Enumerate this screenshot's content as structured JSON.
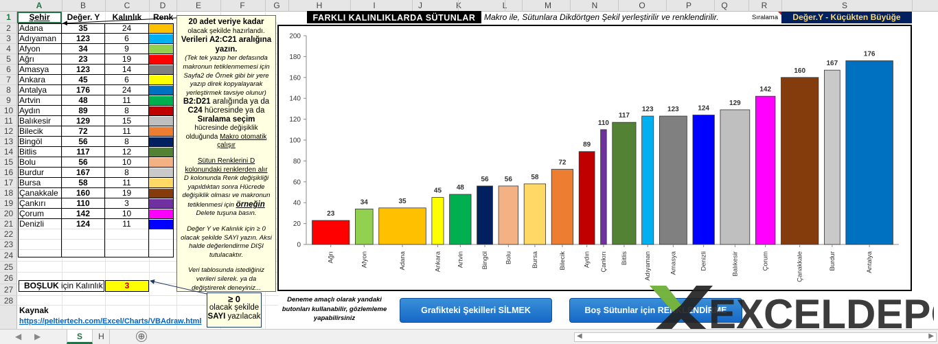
{
  "columns": [
    "A",
    "B",
    "C",
    "D",
    "E",
    "F",
    "G",
    "H",
    "I",
    "J",
    "K",
    "L",
    "M",
    "N",
    "O",
    "P",
    "Q",
    "R",
    "S"
  ],
  "rows": [
    "1",
    "2",
    "3",
    "4",
    "5",
    "6",
    "7",
    "8",
    "9",
    "10",
    "11",
    "12",
    "13",
    "14",
    "15",
    "16",
    "17",
    "18",
    "19",
    "20",
    "21",
    "22",
    "23",
    "24",
    "25",
    "26",
    "27",
    "28"
  ],
  "table": {
    "headers": [
      "Şehir",
      "Değer. Y",
      "Kalınlık",
      "Renk"
    ],
    "rows": [
      {
        "name": "Adana",
        "value": "35",
        "thickness": "24",
        "color": "#ffc000"
      },
      {
        "name": "Adıyaman",
        "value": "123",
        "thickness": "6",
        "color": "#00b0f0"
      },
      {
        "name": "Afyon",
        "value": "34",
        "thickness": "9",
        "color": "#92d050"
      },
      {
        "name": "Ağrı",
        "value": "23",
        "thickness": "19",
        "color": "#ff0000"
      },
      {
        "name": "Amasya",
        "value": "123",
        "thickness": "14",
        "color": "#808080"
      },
      {
        "name": "Ankara",
        "value": "45",
        "thickness": "6",
        "color": "#ffff00"
      },
      {
        "name": "Antalya",
        "value": "176",
        "thickness": "24",
        "color": "#0070c0"
      },
      {
        "name": "Artvin",
        "value": "48",
        "thickness": "11",
        "color": "#00b050"
      },
      {
        "name": "Aydın",
        "value": "89",
        "thickness": "8",
        "color": "#c00000"
      },
      {
        "name": "Balıkesir",
        "value": "129",
        "thickness": "15",
        "color": "#bfbfbf"
      },
      {
        "name": "Bilecik",
        "value": "72",
        "thickness": "11",
        "color": "#ed7d31"
      },
      {
        "name": "Bingöl",
        "value": "56",
        "thickness": "8",
        "color": "#002060"
      },
      {
        "name": "Bitlis",
        "value": "117",
        "thickness": "12",
        "color": "#548235"
      },
      {
        "name": "Bolu",
        "value": "56",
        "thickness": "10",
        "color": "#f4b183"
      },
      {
        "name": "Burdur",
        "value": "167",
        "thickness": "8",
        "color": "#c9c9c9"
      },
      {
        "name": "Bursa",
        "value": "58",
        "thickness": "11",
        "color": "#ffd966"
      },
      {
        "name": "Çanakkale",
        "value": "160",
        "thickness": "19",
        "color": "#843c0c"
      },
      {
        "name": "Çankırı",
        "value": "110",
        "thickness": "3",
        "color": "#7030a0"
      },
      {
        "name": "Çorum",
        "value": "142",
        "thickness": "10",
        "color": "#ff00ff"
      },
      {
        "name": "Denizli",
        "value": "124",
        "thickness": "11",
        "color": "#0000ff"
      }
    ]
  },
  "note": {
    "line1": "20 adet veriye kadar",
    "line2": "olacak şekilde hazırlandı.",
    "line3": "Verileri A2:C21 aralığına yazın.",
    "line4": "(Tek tek yazıp her defasında makronun tetiklenmemesi için Sayfa2 de Örnek gibi bir yere yazıp direk kopyalayarak yerleştirmek tavsiye olunur)",
    "line5a": "B2:D21",
    "line5b": " aralığında ya da",
    "line6a": "C24",
    "line6b": " hücresinde ya da",
    "line7": "Sıralama seçim",
    "line8": "hücresinde değişiklik olduğunda ",
    "line8u": "Makro otomatik çalışır",
    "line9": "Sütun Renklerini D kolonundaki renklerden alır",
    "line10": "D kolonunda Renk değişikliği yapıldıktan sonra Hücrede değişiklik olması ve makronun tetiklenmesi için ",
    "line10u": "örneğin",
    "line10b": " Delete  tuşuna basın.",
    "line11": "Değer Y  ve  Kalınlık  için  ≥ 0 olacak şekilde SAYI yazın. Aksi halde değerlendirme DIŞI tutulacaktır.",
    "line12": "Veri tablosunda istediğiniz verileri silerek. ya da değiştirerek deneyiniz..."
  },
  "bosluk": {
    "label_bold": "BOŞLUK",
    "label_rest": " için Kalınlık",
    "value": "3"
  },
  "callout": {
    "line1": "≥ 0",
    "line2": "olacak şekilde",
    "line3": "SAYI",
    "line4": " yazılacak"
  },
  "kaynak": {
    "label": "Kaynak",
    "link": "https://peltiertech.com/Excel/Charts/VBAdraw.html"
  },
  "deneme": "Deneme amaçlı olarak yandaki butonları kullanabilir, gözlemleme yapabilirsiniz",
  "header": {
    "title": "FARKLI  KALINLIKLARDA  SÜTUNLAR",
    "subtitle": "Makro ile, Sütunlara Dikdörtgen Şekil yerleştirilir ve renklendirilir.",
    "siralama_label": "Sıralama",
    "siralama_value": "Değer.Y - Küçükten Büyüğe"
  },
  "buttons": {
    "delete": "Grafikteki Şekilleri  SİLMEK",
    "empty": "Boş Sütunlar için RENKLENDİRME"
  },
  "logo": {
    "text": "EXCELDEPO"
  },
  "tabs": {
    "s": "S",
    "h": "H",
    "add": "⊕"
  },
  "chart_data": {
    "type": "bar",
    "categories": [
      "Ağrı",
      "Afyon",
      "Adana",
      "Ankara",
      "Artvin",
      "Bingöl",
      "Bolu",
      "Bursa",
      "Bilecik",
      "Aydın",
      "Çankırı",
      "Bitlis",
      "Adıyaman",
      "Amasya",
      "Denizli",
      "Balıkesir",
      "Çorum",
      "Çanakkale",
      "Burdur",
      "Antalya"
    ],
    "values": [
      23,
      34,
      35,
      45,
      48,
      56,
      56,
      58,
      72,
      89,
      110,
      117,
      123,
      123,
      124,
      129,
      142,
      160,
      167,
      176
    ],
    "thickness": [
      19,
      9,
      24,
      6,
      11,
      8,
      10,
      11,
      11,
      8,
      3,
      12,
      6,
      14,
      11,
      15,
      10,
      19,
      8,
      24
    ],
    "gap": 3,
    "colors": [
      "#ff0000",
      "#92d050",
      "#ffc000",
      "#ffff00",
      "#00b050",
      "#002060",
      "#f4b183",
      "#ffd966",
      "#ed7d31",
      "#c00000",
      "#7030a0",
      "#548235",
      "#00b0f0",
      "#808080",
      "#0000ff",
      "#bfbfbf",
      "#ff00ff",
      "#843c0c",
      "#c9c9c9",
      "#0070c0"
    ],
    "yticks": [
      "0",
      "20",
      "40",
      "60",
      "80",
      "100",
      "120",
      "140",
      "160",
      "180",
      "200"
    ],
    "ylim": [
      0,
      200
    ],
    "grid": false
  }
}
